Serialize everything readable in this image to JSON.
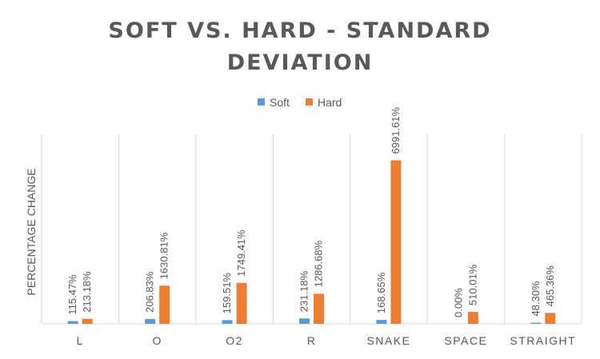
{
  "chart_data": {
    "type": "bar",
    "title_lines": [
      "SOFT VS. HARD - STANDARD",
      "DEVIATION"
    ],
    "xlabel": "",
    "ylabel": "PERCENTAGE CHANGE",
    "categories": [
      "L",
      "O",
      "O2",
      "R",
      "SNAKE",
      "SPACE",
      "STRAIGHT"
    ],
    "series": [
      {
        "name": "Soft",
        "color": "#5B9BD5",
        "values": [
          115.47,
          206.83,
          159.51,
          231.18,
          168.65,
          0.0,
          48.3
        ],
        "labels": [
          "115.47%",
          "206.83%",
          "159.51%",
          "231.18%",
          "168.65%",
          "0.00%",
          "48.30%"
        ]
      },
      {
        "name": "Hard",
        "color": "#ED7D31",
        "values": [
          213.18,
          1630.81,
          1749.41,
          1286.68,
          6991.61,
          510.01,
          465.36
        ],
        "labels": [
          "213.18%",
          "1630.81%",
          "1749.41%",
          "1286.68%",
          "6991.61%",
          "510.01%",
          "465.36%"
        ]
      }
    ],
    "ylim": [
      0,
      7000
    ],
    "grid": "vertical-separators",
    "legend_position": "top"
  }
}
